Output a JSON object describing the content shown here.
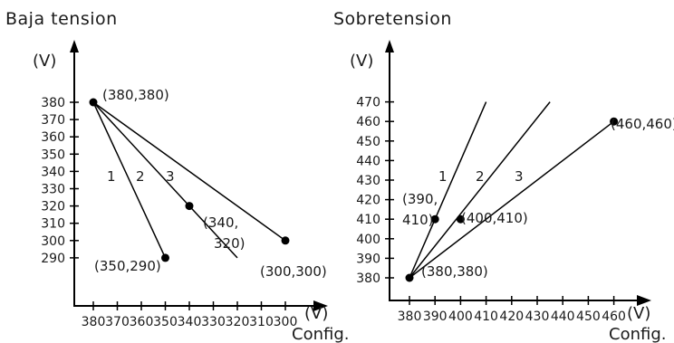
{
  "chart_data": [
    {
      "type": "line",
      "title": "Baja  tension",
      "ylabel": "(V)",
      "xlabel_unit": "(V)",
      "xlabel": "Config.",
      "y_ticks": [
        "290",
        "300",
        "310",
        "320",
        "330",
        "340",
        "350",
        "360",
        "370",
        "380"
      ],
      "x_ticks": [
        "380",
        "370",
        "360",
        "350",
        "340",
        "330",
        "320",
        "310",
        "300"
      ],
      "points": [
        {
          "x": 380,
          "y": 380,
          "label": "(380,380)"
        },
        {
          "x": 350,
          "y": 290,
          "label": "(350,290)"
        },
        {
          "x": 340,
          "y": 320,
          "label_lines": [
            "(340,",
            "320)"
          ]
        },
        {
          "x": 300,
          "y": 300,
          "label": "(300,300)"
        }
      ],
      "series": [
        {
          "name": "1",
          "x": [
            380,
            350
          ],
          "y": [
            380,
            290
          ]
        },
        {
          "name": "2",
          "x": [
            380,
            320
          ],
          "y": [
            380,
            290
          ]
        },
        {
          "name": "3",
          "x": [
            380,
            300
          ],
          "y": [
            380,
            300
          ]
        }
      ]
    },
    {
      "type": "line",
      "title": "Sobretension",
      "ylabel": "(V)",
      "xlabel_unit": "(V)",
      "xlabel": "Config.",
      "y_ticks": [
        "380",
        "390",
        "400",
        "410",
        "420",
        "430",
        "440",
        "450",
        "460",
        "470"
      ],
      "x_ticks": [
        "380",
        "390",
        "400",
        "410",
        "420",
        "430",
        "440",
        "450",
        "460"
      ],
      "points": [
        {
          "x": 380,
          "y": 380,
          "label": "(380,380)"
        },
        {
          "x": 390,
          "y": 410,
          "label_lines": [
            "(390,",
            "410)"
          ]
        },
        {
          "x": 400,
          "y": 410,
          "label": "(400,410)"
        },
        {
          "x": 460,
          "y": 460,
          "label": "(460,460)"
        }
      ],
      "series": [
        {
          "name": "1",
          "x": [
            380,
            410
          ],
          "y": [
            380,
            470
          ]
        },
        {
          "name": "2",
          "x": [
            380,
            435
          ],
          "y": [
            380,
            470
          ]
        },
        {
          "name": "3",
          "x": [
            380,
            460
          ],
          "y": [
            380,
            460
          ]
        }
      ]
    }
  ]
}
